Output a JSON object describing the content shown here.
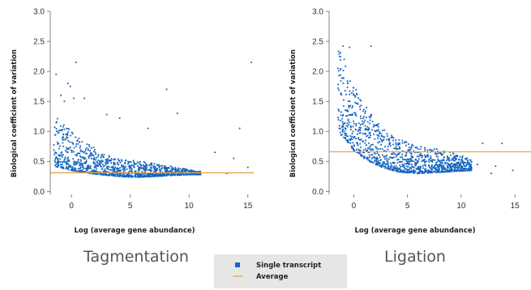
{
  "chart_data": [
    {
      "type": "scatter",
      "title": "Tagmentation",
      "xlabel": "Log (average gene abundance)",
      "ylabel": "Biological coefficient of variation",
      "xlim": [
        -1.8,
        15.5
      ],
      "ylim": [
        -0.05,
        3.0
      ],
      "x_ticks": [
        "0",
        "5",
        "10",
        "15"
      ],
      "y_ticks": [
        "0.0",
        "0.5",
        "1.0",
        "1.5",
        "2.0",
        "2.5",
        "3.0"
      ],
      "average": 0.31,
      "series": [
        {
          "name": "Single transcript",
          "color": "#1565c0",
          "description": "dense cloud of points",
          "envelope": [
            {
              "x": -1.5,
              "low": 0.42,
              "high": 1.25
            },
            {
              "x": -1.0,
              "low": 0.4,
              "high": 1.2
            },
            {
              "x": 0.0,
              "low": 0.35,
              "high": 1.0
            },
            {
              "x": 1.0,
              "low": 0.32,
              "high": 0.85
            },
            {
              "x": 2.0,
              "low": 0.29,
              "high": 0.72
            },
            {
              "x": 3.0,
              "low": 0.27,
              "high": 0.62
            },
            {
              "x": 4.0,
              "low": 0.25,
              "high": 0.56
            },
            {
              "x": 5.0,
              "low": 0.24,
              "high": 0.52
            },
            {
              "x": 6.0,
              "low": 0.24,
              "high": 0.5
            },
            {
              "x": 7.0,
              "low": 0.25,
              "high": 0.47
            },
            {
              "x": 8.0,
              "low": 0.26,
              "high": 0.44
            },
            {
              "x": 9.0,
              "low": 0.27,
              "high": 0.4
            },
            {
              "x": 10.0,
              "low": 0.28,
              "high": 0.36
            },
            {
              "x": 11.0,
              "low": 0.28,
              "high": 0.33
            }
          ],
          "outliers": [
            [
              -1.3,
              1.95
            ],
            [
              -0.3,
              1.8
            ],
            [
              -0.1,
              1.75
            ],
            [
              0.4,
              2.15
            ],
            [
              -0.9,
              1.6
            ],
            [
              -0.6,
              1.5
            ],
            [
              0.2,
              1.55
            ],
            [
              1.1,
              1.55
            ],
            [
              3.0,
              1.28
            ],
            [
              4.1,
              1.22
            ],
            [
              6.5,
              1.05
            ],
            [
              8.1,
              1.7
            ],
            [
              9.0,
              1.3
            ],
            [
              14.3,
              1.05
            ],
            [
              15.3,
              2.15
            ],
            [
              15.0,
              0.4
            ],
            [
              13.8,
              0.55
            ],
            [
              12.2,
              0.65
            ],
            [
              13.2,
              0.3
            ],
            [
              10.3,
              0.32
            ]
          ]
        }
      ]
    },
    {
      "type": "scatter",
      "title": "Ligation",
      "xlabel": "Log (average gene abundance)",
      "ylabel": "Biological coefficient of variation",
      "xlim": [
        -2.3,
        16.5
      ],
      "ylim": [
        -0.05,
        3.0
      ],
      "x_ticks": [
        "0",
        "5",
        "10",
        "15"
      ],
      "y_ticks": [
        "0.0",
        "0.5",
        "1.0",
        "1.5",
        "2.0",
        "2.5",
        "3.0"
      ],
      "average": 0.66,
      "series": [
        {
          "name": "Single transcript",
          "color": "#1565c0",
          "description": "dense cloud of points",
          "envelope": [
            {
              "x": -1.5,
              "low": 1.0,
              "high": 2.4
            },
            {
              "x": -1.0,
              "low": 0.9,
              "high": 2.25
            },
            {
              "x": -0.5,
              "low": 0.8,
              "high": 2.0
            },
            {
              "x": 0.0,
              "low": 0.68,
              "high": 1.78
            },
            {
              "x": 1.0,
              "low": 0.55,
              "high": 1.45
            },
            {
              "x": 2.0,
              "low": 0.45,
              "high": 1.2
            },
            {
              "x": 3.0,
              "low": 0.38,
              "high": 1.0
            },
            {
              "x": 4.0,
              "low": 0.33,
              "high": 0.88
            },
            {
              "x": 5.0,
              "low": 0.31,
              "high": 0.82
            },
            {
              "x": 6.0,
              "low": 0.3,
              "high": 0.76
            },
            {
              "x": 7.0,
              "low": 0.31,
              "high": 0.72
            },
            {
              "x": 8.0,
              "low": 0.32,
              "high": 0.7
            },
            {
              "x": 9.0,
              "low": 0.33,
              "high": 0.66
            },
            {
              "x": 10.0,
              "low": 0.34,
              "high": 0.6
            },
            {
              "x": 11.0,
              "low": 0.35,
              "high": 0.52
            }
          ],
          "outliers": [
            [
              -1.0,
              2.42
            ],
            [
              -0.4,
              2.4
            ],
            [
              1.6,
              2.42
            ],
            [
              -0.9,
              2.2
            ],
            [
              12.0,
              0.8
            ],
            [
              13.8,
              0.8
            ],
            [
              11.5,
              0.45
            ],
            [
              13.2,
              0.42
            ],
            [
              12.8,
              0.3
            ],
            [
              14.8,
              0.35
            ]
          ]
        }
      ]
    }
  ],
  "legend": {
    "items": [
      {
        "label": "Single transcript",
        "color": "#1565c0",
        "marker": "square"
      },
      {
        "label": "Average",
        "color": "#e8a54b",
        "marker": "line"
      }
    ]
  }
}
